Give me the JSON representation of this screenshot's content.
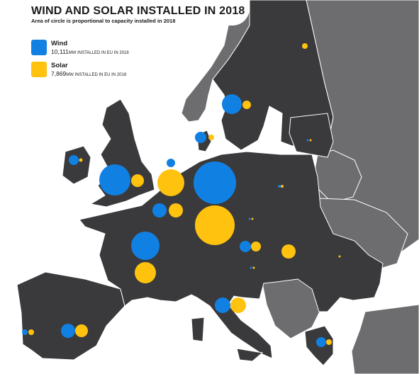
{
  "title": "WIND AND SOLAR INSTALLED IN 2018",
  "subtitle": "Area of circle is proportional to capacity installed in 2018",
  "legend": {
    "wind": {
      "name": "Wind",
      "value": "10,111",
      "unit_text": "MW INSTALLED IN EU IN 2018",
      "color": "#1180e3"
    },
    "solar": {
      "name": "Solar",
      "value": "7,869",
      "unit_text": "MW INSTALLED IN EU IN 2018",
      "color": "#ffc20e"
    }
  },
  "colors": {
    "sea": "#ffffff",
    "eu_land": "#3a3a3c",
    "non_eu_land": "#6d6d70",
    "borders": "#ffffff"
  }
}
